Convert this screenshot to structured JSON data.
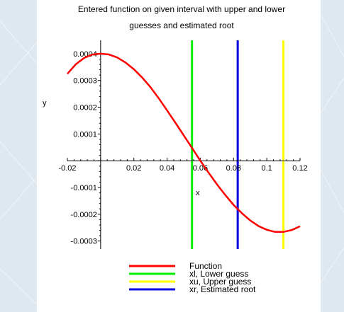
{
  "chart_data": {
    "type": "line",
    "title_line1": "Entered function on given interval with upper and lower",
    "title_line2": "guesses and estimated root",
    "xlabel": "x",
    "ylabel": "y",
    "xlim": [
      -0.02,
      0.12
    ],
    "ylim": [
      -0.00033,
      0.00045
    ],
    "x_ticks": [
      "-0.02",
      "0.02",
      "0.04",
      "0.06",
      "0.08",
      "0.1",
      "0.12"
    ],
    "y_ticks": [
      "0.0004",
      "0.0003",
      "0.0002",
      "0.0001",
      "-0.0001",
      "-0.0002",
      "-0.0003"
    ],
    "grid": false,
    "series": [
      {
        "name": "Function",
        "color": "#ff0000",
        "points": [
          [
            -0.02,
            0.000325
          ],
          [
            -0.015,
            0.00036
          ],
          [
            -0.01,
            0.000384
          ],
          [
            -0.005,
            0.000397
          ],
          [
            0.0,
            0.0004
          ],
          [
            0.005,
            0.000397
          ],
          [
            0.01,
            0.000386
          ],
          [
            0.015,
            0.000367
          ],
          [
            0.02,
            0.000342
          ],
          [
            0.025,
            0.000311
          ],
          [
            0.03,
            0.000275
          ],
          [
            0.035,
            0.000233
          ],
          [
            0.04,
            0.000188
          ],
          [
            0.045,
            0.000142
          ],
          [
            0.05,
            9.5e-05
          ],
          [
            0.055,
            4.8e-05
          ],
          [
            0.06,
            0.0
          ],
          [
            0.065,
            -4.5e-05
          ],
          [
            0.07,
            -8.8e-05
          ],
          [
            0.075,
            -0.000128
          ],
          [
            0.08,
            -0.000165
          ],
          [
            0.085,
            -0.000196
          ],
          [
            0.09,
            -0.000223
          ],
          [
            0.095,
            -0.000244
          ],
          [
            0.1,
            -0.000258
          ],
          [
            0.105,
            -0.000266
          ],
          [
            0.11,
            -0.000266
          ],
          [
            0.115,
            -0.000259
          ],
          [
            0.12,
            -0.000245
          ]
        ]
      }
    ],
    "vertical_lines": [
      {
        "name": "xl, Lower guess",
        "x": 0.055,
        "color": "#00ee00"
      },
      {
        "name": "xu, Upper guess",
        "x": 0.11,
        "color": "#ffff00"
      },
      {
        "name": "xr, Estimated root",
        "x": 0.0825,
        "color": "#0000dd"
      }
    ],
    "legend": [
      {
        "label": "Function",
        "color": "#ff0000"
      },
      {
        "label": "xl, Lower guess",
        "color": "#00ee00"
      },
      {
        "label": "xu, Upper guess",
        "color": "#ffff00"
      },
      {
        "label": "xr, Estimated root",
        "color": "#0000dd"
      }
    ]
  }
}
